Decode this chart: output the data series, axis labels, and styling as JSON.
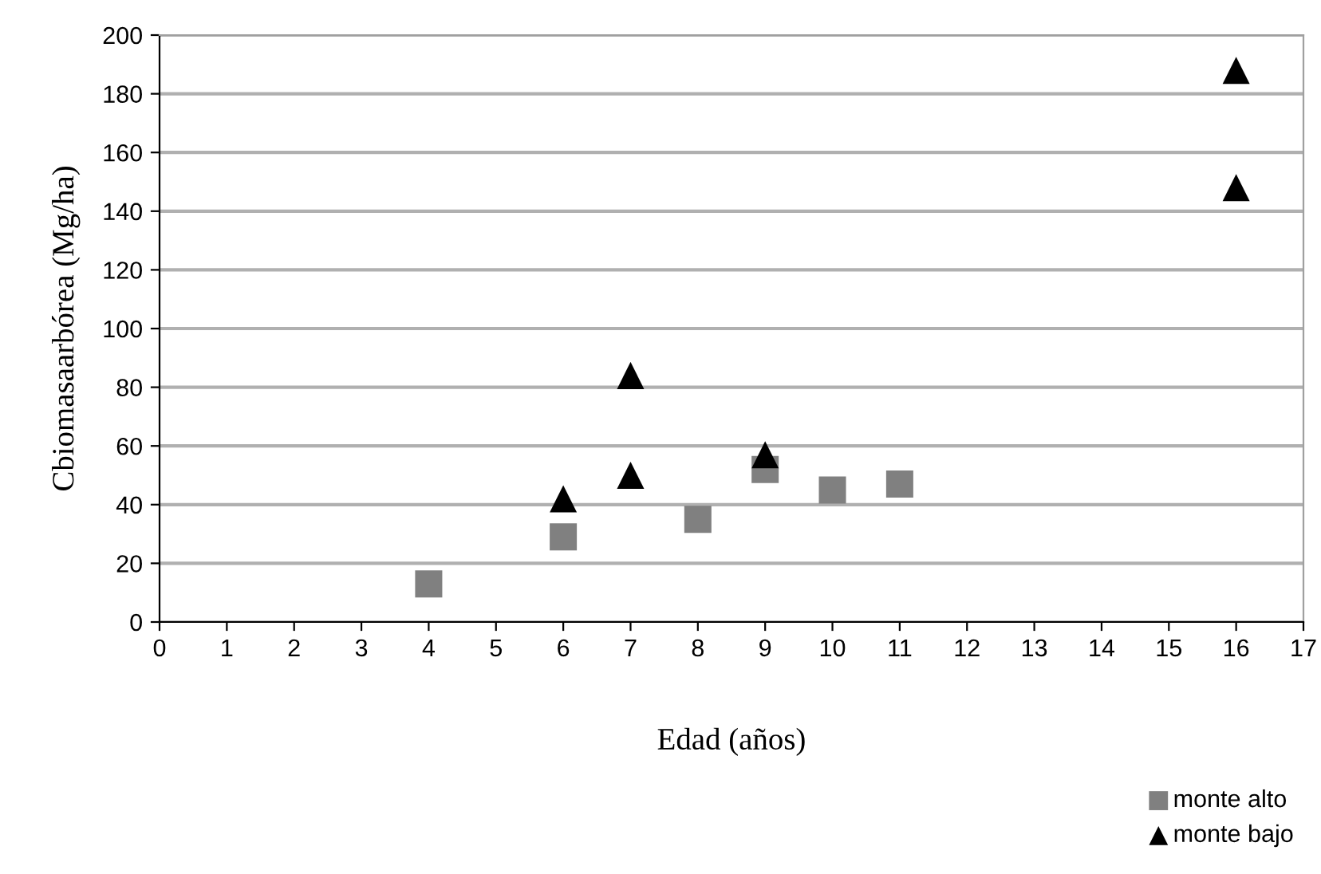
{
  "chart_data": {
    "type": "scatter",
    "xlabel": "Edad (años)",
    "ylabel": "Cbiomasaarbórea (Mg/ha)",
    "xlim": [
      0,
      17
    ],
    "xticks": [
      0,
      1,
      2,
      3,
      4,
      5,
      6,
      7,
      8,
      9,
      10,
      11,
      12,
      13,
      14,
      15,
      16,
      17
    ],
    "ylim": [
      0,
      200
    ],
    "yticks": [
      0,
      20,
      40,
      60,
      80,
      100,
      120,
      140,
      160,
      180,
      200
    ],
    "grid": "y",
    "legend": "bottom right",
    "series": [
      {
        "name": "monte alto",
        "color": "#808080",
        "marker": "square",
        "x": [
          4,
          6,
          8,
          9,
          10,
          11
        ],
        "values": [
          13,
          29,
          35,
          52,
          45,
          47
        ]
      },
      {
        "name": "monte bajo",
        "color": "#000000",
        "marker": "triangle",
        "x": [
          6,
          7,
          7,
          9,
          16,
          16
        ],
        "values": [
          42,
          84,
          50,
          57,
          188,
          148
        ]
      }
    ]
  }
}
